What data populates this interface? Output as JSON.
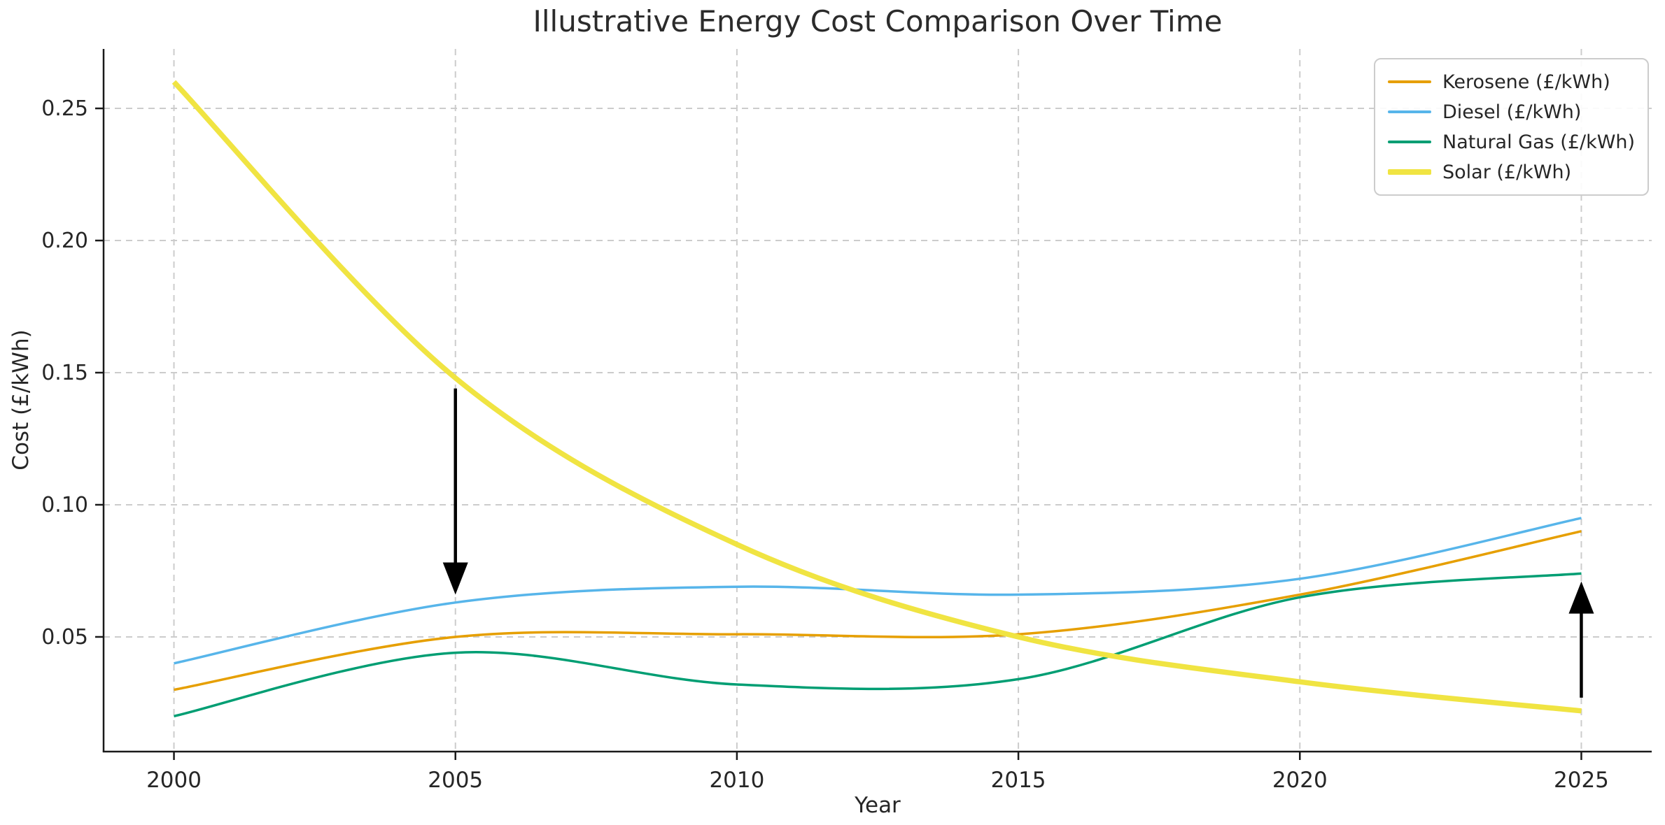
{
  "chart_data": {
    "type": "line",
    "title": "Illustrative Energy Cost Comparison Over Time",
    "xlabel": "Year",
    "ylabel": "Cost (£/kWh)",
    "x": [
      2000,
      2005,
      2010,
      2015,
      2020,
      2025
    ],
    "series": [
      {
        "name": "Kerosene (£/kWh)",
        "color": "#E69F00",
        "line_width": 3.5,
        "values": [
          0.03,
          0.05,
          0.051,
          0.051,
          0.066,
          0.09
        ]
      },
      {
        "name": "Diesel (£/kWh)",
        "color": "#57B5EA",
        "line_width": 3.5,
        "values": [
          0.04,
          0.063,
          0.069,
          0.066,
          0.072,
          0.095
        ]
      },
      {
        "name": "Natural Gas (£/kWh)",
        "color": "#009E73",
        "line_width": 3.5,
        "values": [
          0.02,
          0.044,
          0.032,
          0.034,
          0.065,
          0.074
        ]
      },
      {
        "name": "Solar (£/kWh)",
        "color": "#F0E442",
        "line_width": 7.5,
        "values": [
          0.26,
          0.148,
          0.085,
          0.05,
          0.033,
          0.022
        ]
      }
    ],
    "xticks": {
      "values": [
        2000,
        2005,
        2010,
        2015,
        2020,
        2025
      ],
      "labels": [
        "2000",
        "2005",
        "2010",
        "2015",
        "2020",
        "2025"
      ]
    },
    "yticks": {
      "values": [
        0.05,
        0.1,
        0.15,
        0.2,
        0.25
      ],
      "labels": [
        "0.05",
        "0.10",
        "0.15",
        "0.20",
        "0.25"
      ]
    },
    "xlim": [
      1998.75,
      2026.25
    ],
    "ylim": [
      0.0066,
      0.2725
    ],
    "grid": {
      "show": true,
      "line_style": "dashed",
      "color": "#cccccc"
    },
    "legend": {
      "position": "upper right"
    },
    "annotations": [
      {
        "id": "down-arrow-2005",
        "shape": "arrow",
        "direction": "down",
        "year": 2005,
        "value_from": 0.144,
        "value_to": 0.066,
        "color": "#000000"
      },
      {
        "id": "up-arrow-2025",
        "shape": "arrow",
        "direction": "up",
        "year": 2025,
        "value_from": 0.027,
        "value_to": 0.071,
        "color": "#000000"
      }
    ],
    "styles": {
      "axis_color": "#1a1a1a",
      "text_color": "#262626",
      "background": "#ffffff"
    }
  }
}
